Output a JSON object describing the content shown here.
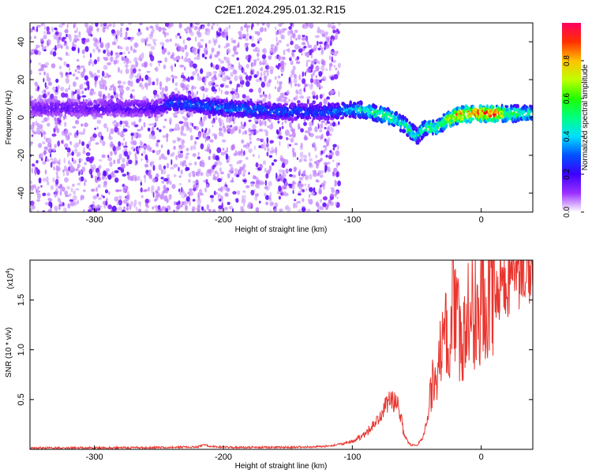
{
  "title": "C2E1.2024.295.01.32.R15",
  "chart_data": [
    {
      "type": "heatmap",
      "xlabel": "Height of straight line (km)",
      "ylabel": "Frequency (Hz)",
      "xlim": [
        -350,
        40
      ],
      "ylim": [
        -50,
        50
      ],
      "xticks": [
        -300,
        -200,
        -100,
        0
      ],
      "yticks": [
        -40,
        -20,
        0,
        20,
        40
      ],
      "colorbar": {
        "label": "Normalized spectral amplitude",
        "range": [
          0.0,
          1.0
        ],
        "ticks": [
          0.0,
          0.2,
          0.4,
          0.6,
          0.8
        ],
        "tick_labels": [
          "0.0",
          "0.2",
          "0.4",
          "0.6",
          "0.8"
        ],
        "colormap": [
          "#e8d8f8",
          "#c8a0f0",
          "#8c28ff",
          "#4600ff",
          "#0000ff",
          "#00c8ff",
          "#00ff90",
          "#60ff00",
          "#ffff00",
          "#ff8000",
          "#ff0000"
        ]
      },
      "ridge": {
        "x": [
          -350,
          -250,
          -240,
          -200,
          -150,
          -120,
          -100,
          -90,
          -80,
          -70,
          -60,
          -55,
          -50,
          -45,
          -40,
          -35,
          -30,
          -25,
          -20,
          -10,
          0,
          10,
          20,
          30,
          40
        ],
        "y": [
          5,
          5,
          8,
          5,
          3,
          3,
          4,
          4,
          2,
          0,
          -4,
          -7,
          -10,
          -6,
          -5,
          -6,
          -3,
          -1,
          1,
          2,
          2,
          2,
          2,
          2,
          2
        ],
        "amplitude": [
          0.15,
          0.2,
          0.3,
          0.35,
          0.3,
          0.3,
          0.4,
          0.5,
          0.55,
          0.55,
          0.5,
          0.55,
          0.45,
          0.5,
          0.55,
          0.55,
          0.6,
          0.75,
          0.85,
          0.9,
          0.95,
          0.95,
          0.6,
          0.55,
          0.5
        ]
      },
      "noise_extent": {
        "x_from": -350,
        "x_to": -110
      }
    },
    {
      "type": "line",
      "xlabel": "Height of straight line (km)",
      "ylabel": "SNR (10 * v/v)",
      "y_multiplier_label": "(x10",
      "y_multiplier_exp": "4",
      "xlim": [
        -350,
        40
      ],
      "ylim": [
        0,
        1.9
      ],
      "xticks": [
        -300,
        -200,
        -100,
        0
      ],
      "yticks": [
        0.5,
        1.0,
        1.5
      ],
      "ytick_labels": [
        "0.5",
        "1.0",
        "1.5"
      ],
      "color": "#e8352e",
      "series": [
        {
          "x": [
            -350,
            -300,
            -250,
            -220,
            -215,
            -210,
            -200,
            -150,
            -120,
            -110,
            -100,
            -90,
            -80,
            -75,
            -70,
            -65,
            -62,
            -60,
            -57,
            -55,
            -50,
            -45,
            -42,
            -40,
            -38,
            -35,
            -30,
            -25,
            -20,
            -15,
            -10,
            -5,
            0,
            10,
            20,
            30,
            40
          ],
          "values": [
            0.015,
            0.015,
            0.018,
            0.025,
            0.05,
            0.03,
            0.02,
            0.02,
            0.03,
            0.05,
            0.08,
            0.15,
            0.3,
            0.42,
            0.5,
            0.45,
            0.3,
            0.15,
            0.08,
            0.05,
            0.04,
            0.12,
            0.3,
            0.5,
            0.65,
            0.8,
            1.0,
            1.2,
            1.3,
            1.2,
            1.3,
            1.4,
            1.5,
            1.6,
            1.7,
            1.8,
            1.88
          ]
        }
      ]
    }
  ]
}
